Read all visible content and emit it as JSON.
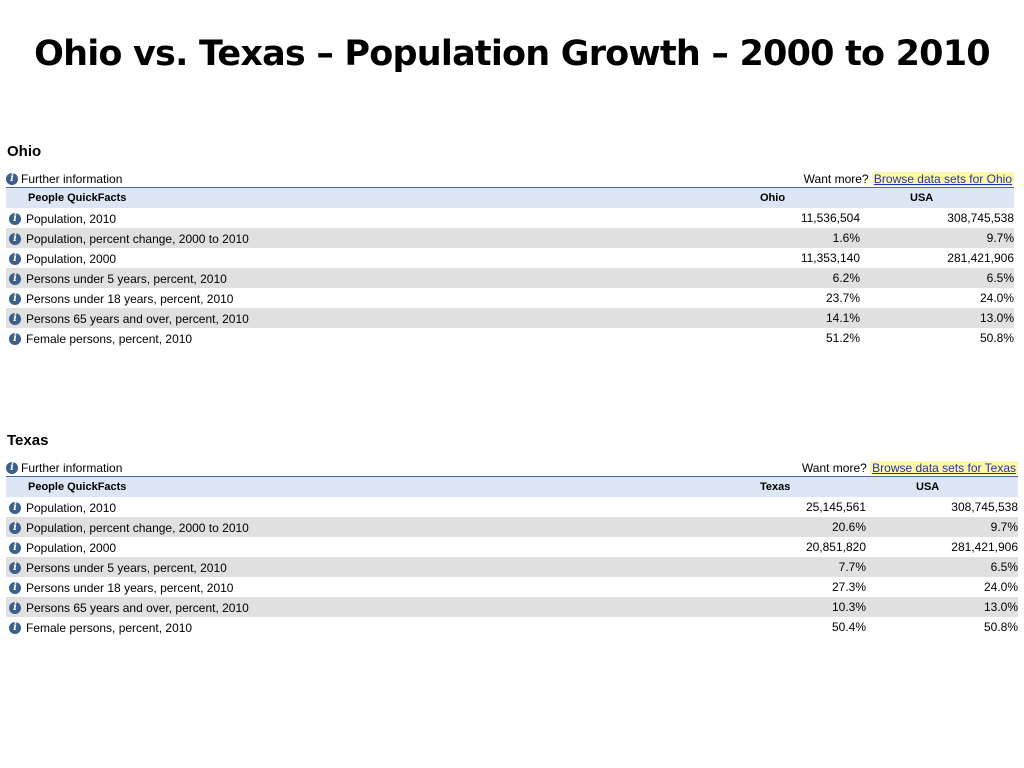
{
  "slide": {
    "title": "Ohio vs. Texas – Population Growth – 2000 to 2010"
  },
  "icons": {
    "info": "info-icon"
  },
  "colors": {
    "header_bg": "#dce6f4",
    "alt_row_bg": "#e0e0e0",
    "link_highlight": "#fff7a8",
    "link": "#2233aa"
  },
  "sections": [
    {
      "state": "Ohio",
      "further_info": "Further information",
      "want_more": "Want more? ",
      "browse_link": "Browse data sets for Ohio",
      "header": {
        "label": "People QuickFacts",
        "col_state": "Ohio",
        "col_usa": "USA"
      },
      "rows": [
        {
          "label": "Population, 2010",
          "state": "11,536,504",
          "usa": "308,745,538"
        },
        {
          "label": "Population, percent change, 2000 to 2010",
          "state": "1.6%",
          "usa": "9.7%"
        },
        {
          "label": "Population, 2000",
          "state": "11,353,140",
          "usa": "281,421,906"
        },
        {
          "label": "Persons under 5 years, percent, 2010",
          "state": "6.2%",
          "usa": "6.5%"
        },
        {
          "label": "Persons under 18 years, percent, 2010",
          "state": "23.7%",
          "usa": "24.0%"
        },
        {
          "label": "Persons 65 years and over, percent, 2010",
          "state": "14.1%",
          "usa": "13.0%"
        },
        {
          "label": "Female persons, percent, 2010",
          "state": "51.2%",
          "usa": "50.8%"
        }
      ]
    },
    {
      "state": "Texas",
      "further_info": "Further information",
      "want_more": "Want more? ",
      "browse_link": "Browse data sets for Texas",
      "header": {
        "label": "People QuickFacts",
        "col_state": "Texas",
        "col_usa": "USA"
      },
      "rows": [
        {
          "label": "Population, 2010",
          "state": "25,145,561",
          "usa": "308,745,538"
        },
        {
          "label": "Population, percent change, 2000 to 2010",
          "state": "20.6%",
          "usa": "9.7%"
        },
        {
          "label": "Population, 2000",
          "state": "20,851,820",
          "usa": "281,421,906"
        },
        {
          "label": "Persons under 5 years, percent, 2010",
          "state": "7.7%",
          "usa": "6.5%"
        },
        {
          "label": "Persons under 18 years, percent, 2010",
          "state": "27.3%",
          "usa": "24.0%"
        },
        {
          "label": "Persons 65 years and over, percent, 2010",
          "state": "10.3%",
          "usa": "13.0%"
        },
        {
          "label": "Female persons, percent, 2010",
          "state": "50.4%",
          "usa": "50.8%"
        }
      ]
    }
  ]
}
